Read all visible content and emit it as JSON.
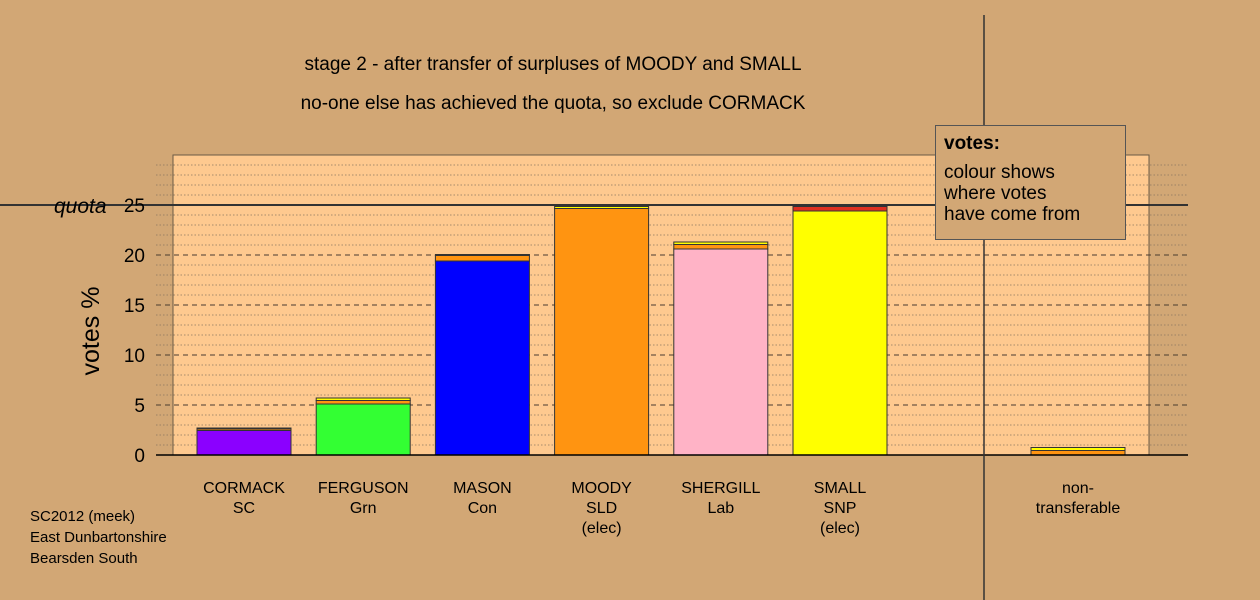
{
  "titles": {
    "line1": "stage 2 - after transfer of surpluses of MOODY and SMALL",
    "line2": "no-one else has achieved the quota, so exclude CORMACK"
  },
  "footer": [
    "SC2012 (meek)",
    "East Dunbartonshire",
    "Bearsden South"
  ],
  "legend": {
    "title": "votes:",
    "lines": [
      "colour shows",
      "where votes",
      "have come from"
    ]
  },
  "colors": {
    "background": "#d2a775",
    "plot_area": "#fec98f",
    "transfer_from_moody": "#ff9411",
    "transfer_from_small": "#ffff00",
    "transfer_from_small_bar_top": "#e03020"
  },
  "chart_data": {
    "type": "bar",
    "stacked": true,
    "ylabel": "votes %",
    "quota_label": "quota",
    "quota": 25,
    "ylim": [
      0,
      30
    ],
    "yticks": [
      0,
      5,
      10,
      15,
      20,
      25
    ],
    "grid": "dotted minor every 1, dashed major every 5",
    "legend_position": "top-right",
    "candidates": [
      {
        "name": "CORMACK",
        "party": "SC",
        "status": "",
        "color": "#8b00ff",
        "first": 2.45,
        "transfers": [
          {
            "from": "MOODY",
            "value": 0.15
          },
          {
            "from": "SMALL",
            "value": 0.1
          }
        ]
      },
      {
        "name": "FERGUSON",
        "party": "Grn",
        "status": "",
        "color": "#33ff33",
        "first": 5.1,
        "transfers": [
          {
            "from": "MOODY",
            "value": 0.35
          },
          {
            "from": "SMALL",
            "value": 0.25
          }
        ]
      },
      {
        "name": "MASON",
        "party": "Con",
        "status": "",
        "color": "#0000ff",
        "first": 19.4,
        "transfers": [
          {
            "from": "MOODY",
            "value": 0.55
          },
          {
            "from": "SMALL",
            "value": 0.1
          }
        ]
      },
      {
        "name": "MOODY",
        "party": "SLD",
        "status": "(elec)",
        "color": "#ff9411",
        "first": 24.65,
        "transfers": [
          {
            "from": "SMALL",
            "value": 0.2
          }
        ]
      },
      {
        "name": "SHERGILL",
        "party": "Lab",
        "status": "",
        "color": "#ffb3c6",
        "first": 20.6,
        "transfers": [
          {
            "from": "MOODY",
            "value": 0.45
          },
          {
            "from": "SMALL",
            "value": 0.25
          }
        ]
      },
      {
        "name": "SMALL",
        "party": "SNP",
        "status": "(elec)",
        "color": "#ffff00",
        "first": 24.4,
        "transfers": [
          {
            "from": "MOODY",
            "value": 0.45
          }
        ]
      }
    ],
    "nontransferable": {
      "label_line1": "non-",
      "label_line2": "transferable",
      "transfers": [
        {
          "from": "MOODY",
          "value": 0.45
        },
        {
          "from": "SMALL",
          "value": 0.3
        }
      ]
    }
  }
}
